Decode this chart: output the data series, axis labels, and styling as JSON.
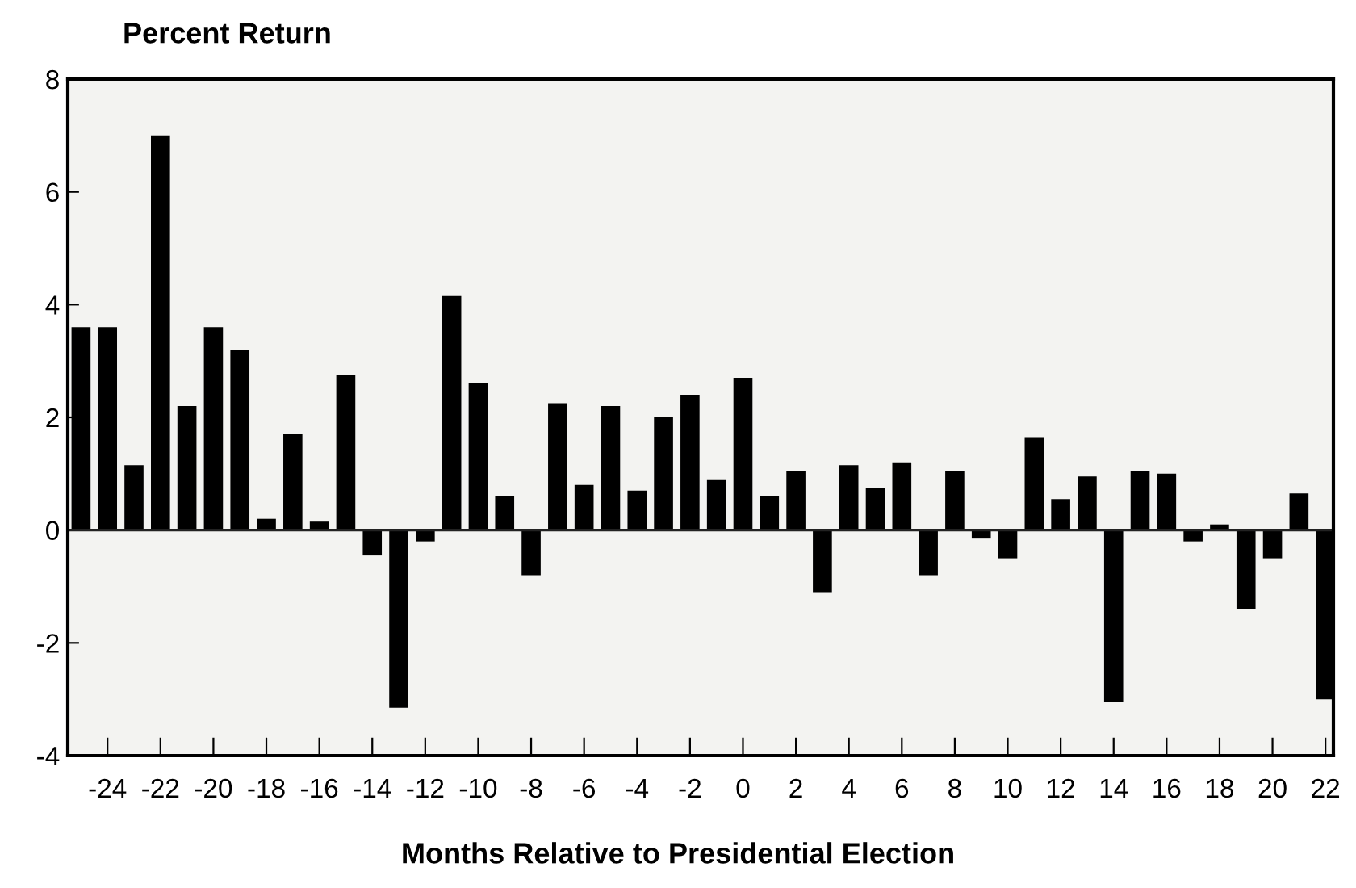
{
  "chart_data": {
    "type": "bar",
    "ylabel": "Percent Return",
    "xlabel": "Months Relative to Presidential Election",
    "x": [
      -25,
      -24,
      -23,
      -22,
      -21,
      -20,
      -19,
      -18,
      -17,
      -16,
      -15,
      -14,
      -13,
      -12,
      -11,
      -10,
      -9,
      -8,
      -7,
      -6,
      -5,
      -4,
      -3,
      -2,
      -1,
      0,
      1,
      2,
      3,
      4,
      5,
      6,
      7,
      8,
      9,
      10,
      11,
      12,
      13,
      14,
      15,
      16,
      17,
      18,
      19,
      20,
      21,
      22
    ],
    "values": [
      3.6,
      3.6,
      1.15,
      7.0,
      2.2,
      3.6,
      3.2,
      0.2,
      1.7,
      0.15,
      2.75,
      -0.45,
      -3.15,
      -0.2,
      4.15,
      2.6,
      0.6,
      -0.8,
      2.25,
      0.8,
      2.2,
      0.7,
      2.0,
      2.4,
      0.9,
      2.7,
      0.6,
      1.05,
      -1.1,
      1.15,
      0.75,
      1.2,
      -0.8,
      1.05,
      -0.15,
      -0.5,
      1.65,
      0.55,
      0.95,
      -3.05,
      1.05,
      1.0,
      -0.2,
      0.1,
      -1.4,
      -0.5,
      0.65,
      -3.0
    ],
    "color": "#000000",
    "xlim": [
      -25.5,
      22.3
    ],
    "ylim": [
      -4,
      8
    ],
    "xticks": [
      -24,
      -22,
      -20,
      -18,
      -16,
      -14,
      -12,
      -10,
      -8,
      -6,
      -4,
      -2,
      0,
      2,
      4,
      6,
      8,
      10,
      12,
      14,
      16,
      18,
      20,
      22
    ],
    "yticks": [
      -4,
      -2,
      0,
      2,
      4,
      6,
      8
    ],
    "legend": false
  }
}
